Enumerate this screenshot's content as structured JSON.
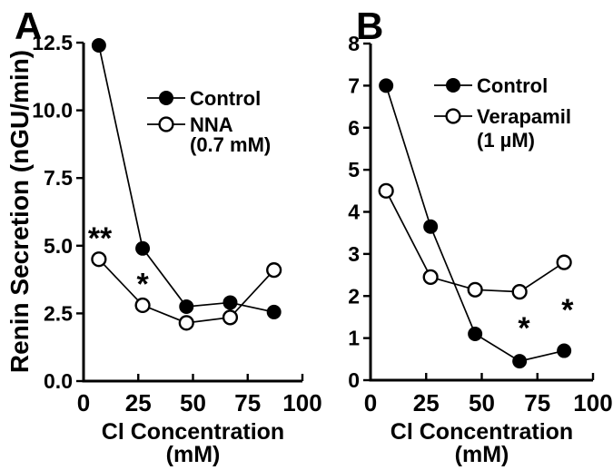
{
  "figure": {
    "colors": {
      "ink": "#000000",
      "background": "#ffffff",
      "open_marker_fill": "#ffffff"
    },
    "y_axis_title": "Renin Secretion (nGU/min)",
    "x_axis_title_line1": "Cl Concentration",
    "x_axis_title_line2": "(mM)"
  },
  "chart_data": [
    {
      "type": "line",
      "panel_label": "A",
      "title": "",
      "xlabel": "Cl Concentration (mM)",
      "ylabel": "Renin Secretion (nGU/min)",
      "xlim": [
        0,
        100
      ],
      "ylim": [
        0,
        12.5
      ],
      "x_ticks": [
        0,
        25,
        50,
        75,
        100
      ],
      "x_tick_labels": [
        "0",
        "25",
        "50",
        "75",
        "100"
      ],
      "y_ticks": [
        0,
        2.5,
        5,
        7.5,
        10,
        12.5
      ],
      "y_tick_labels": [
        "0.0",
        "2.5",
        "5.0",
        "7.5",
        "10.0",
        "12.5"
      ],
      "grid": false,
      "legend_position": "upper-right-inside",
      "x": [
        7,
        27,
        47,
        67,
        87
      ],
      "series": [
        {
          "name": "Control",
          "marker": "filled-circle",
          "values": [
            12.4,
            4.9,
            2.75,
            2.9,
            2.55
          ]
        },
        {
          "name": "NNA (0.7 mM)",
          "marker": "open-circle",
          "values": [
            4.5,
            2.8,
            2.15,
            2.35,
            4.1
          ]
        }
      ],
      "legend": [
        {
          "label": "Control",
          "sublabel": "",
          "marker": "filled-circle"
        },
        {
          "label": "NNA",
          "sublabel": "(0.7 mM)",
          "marker": "open-circle"
        }
      ],
      "annotations": [
        {
          "text": "**",
          "x": 7.5,
          "y": 5.4
        },
        {
          "text": "*",
          "x": 27,
          "y": 3.7
        }
      ]
    },
    {
      "type": "line",
      "panel_label": "B",
      "title": "",
      "xlabel": "Cl Concentration (mM)",
      "ylabel": "",
      "xlim": [
        0,
        100
      ],
      "ylim": [
        0,
        8
      ],
      "x_ticks": [
        0,
        25,
        50,
        75,
        100
      ],
      "x_tick_labels": [
        "0",
        "25",
        "50",
        "75",
        "100"
      ],
      "y_ticks": [
        0,
        1,
        2,
        3,
        4,
        5,
        6,
        7,
        8
      ],
      "y_tick_labels": [
        "0",
        "1",
        "2",
        "3",
        "4",
        "5",
        "6",
        "7",
        "8"
      ],
      "grid": false,
      "legend_position": "upper-right-inside",
      "x": [
        7,
        27,
        47,
        67,
        87
      ],
      "series": [
        {
          "name": "Control",
          "marker": "filled-circle",
          "values": [
            7.0,
            3.65,
            1.1,
            0.45,
            0.7
          ]
        },
        {
          "name": "Verapamil (1 µM)",
          "marker": "open-circle",
          "values": [
            4.5,
            2.45,
            2.15,
            2.1,
            2.8
          ]
        }
      ],
      "legend": [
        {
          "label": "Control",
          "sublabel": "",
          "marker": "filled-circle"
        },
        {
          "label": "Verapamil",
          "sublabel": "(1 µM)",
          "marker": "open-circle"
        }
      ],
      "annotations": [
        {
          "text": "*",
          "x": 69,
          "y": 1.32
        },
        {
          "text": "*",
          "x": 88.5,
          "y": 1.75
        }
      ]
    }
  ]
}
